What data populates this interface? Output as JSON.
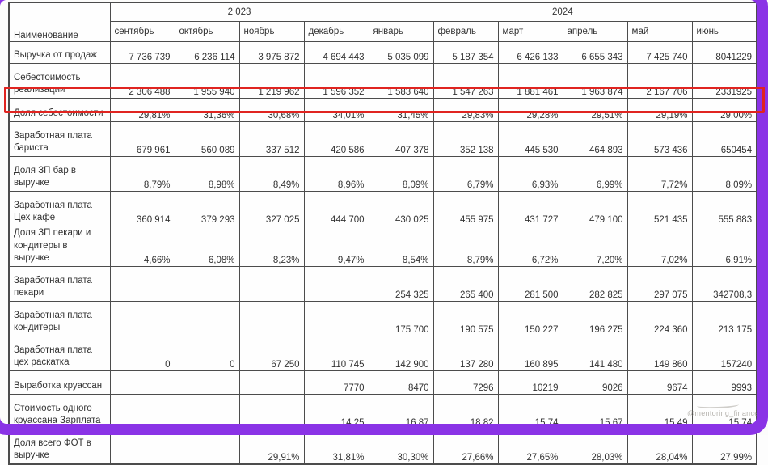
{
  "colors": {
    "frame_purple": "#8a33e6",
    "highlight_red": "#e02420",
    "table_border": "#4c4c4c"
  },
  "watermark": "@mentoring_finance",
  "table": {
    "name_header": "Наименование",
    "year_groups": [
      {
        "label": "2 023",
        "span": 4
      },
      {
        "label": "2024",
        "span": 6
      }
    ],
    "months": [
      "сентябрь",
      "октябрь",
      "ноябрь",
      "декабрь",
      "январь",
      "февраль",
      "март",
      "апрель",
      "май",
      "июнь"
    ],
    "highlighted_row": "Доля себестоимости",
    "rows": [
      {
        "name": "Выручка от продаж",
        "two_line": false,
        "values": [
          "7 736 739",
          "6 236 114",
          "3 975 872",
          "4 694 443",
          "5 035 099",
          "5 187 354",
          "6 426 133",
          "6 655 343",
          "7 425 740",
          "8041229"
        ]
      },
      {
        "name": "Себестоимость реализации",
        "two_line": true,
        "values": [
          "2 306 488",
          "1 955 940",
          "1 219 962",
          "1 596 352",
          "1 583 640",
          "1 547 263",
          "1 881 461",
          "1 963 874",
          "2 167 706",
          "2331925"
        ]
      },
      {
        "name": "Доля себестоимости",
        "two_line": false,
        "highlighted": true,
        "values": [
          "29,81%",
          "31,36%",
          "30,68%",
          "34,01%",
          "31,45%",
          "29,83%",
          "29,28%",
          "29,51%",
          "29,19%",
          "29,00%"
        ]
      },
      {
        "name": "Заработная плата бариста",
        "two_line": true,
        "values": [
          "679 961",
          "560 089",
          "337 512",
          "420 586",
          "407 378",
          "352 138",
          "445 530",
          "464 893",
          "573 436",
          "650454"
        ]
      },
      {
        "name": "Доля ЗП бар в выручке",
        "two_line": true,
        "values": [
          "8,79%",
          "8,98%",
          "8,49%",
          "8,96%",
          "8,09%",
          "6,79%",
          "6,93%",
          "6,99%",
          "7,72%",
          "8,09%"
        ]
      },
      {
        "name": "Заработная плата Цех кафе",
        "two_line": true,
        "values": [
          "360 914",
          "379 293",
          "327 025",
          "444 700",
          "430 025",
          "455 975",
          "431 727",
          "479 100",
          "521 435",
          "555 883"
        ]
      },
      {
        "name": "Доля ЗП пекари и кондитеры в выручке",
        "two_line": true,
        "values": [
          "4,66%",
          "6,08%",
          "8,23%",
          "9,47%",
          "8,54%",
          "8,79%",
          "6,72%",
          "7,20%",
          "7,02%",
          "6,91%"
        ]
      },
      {
        "name": "Заработная плата пекари",
        "two_line": true,
        "values": [
          "",
          "",
          "",
          "",
          "254 325",
          "265 400",
          "281 500",
          "282 825",
          "297 075",
          "342708,3"
        ]
      },
      {
        "name": "Заработная плата кондитеры",
        "two_line": true,
        "values": [
          "",
          "",
          "",
          "",
          "175 700",
          "190 575",
          "150 227",
          "196 275",
          "224 360",
          "213 175"
        ]
      },
      {
        "name": "Заработная плата цех раскатка",
        "two_line": true,
        "values": [
          "0",
          "0",
          "67 250",
          "110 745",
          "142 900",
          "137 280",
          "160 895",
          "141 480",
          "149 860",
          "157240"
        ]
      },
      {
        "name": "Выработка круассан",
        "two_line": false,
        "values": [
          "",
          "",
          "",
          "7770",
          "8470",
          "7296",
          "10219",
          "9026",
          "9674",
          "9993"
        ]
      },
      {
        "name": "Стоимость одного круассана Зарплата",
        "two_line": true,
        "values": [
          "",
          "",
          "",
          "14,25",
          "16,87",
          "18,82",
          "15,74",
          "15,67",
          "15,49",
          "15,74"
        ]
      },
      {
        "name": "Доля всего ФОТ в выручке",
        "two_line": true,
        "values": [
          "",
          "",
          "29,91%",
          "31,81%",
          "30,30%",
          "27,66%",
          "27,65%",
          "28,03%",
          "28,04%",
          "27,99%"
        ]
      }
    ]
  }
}
